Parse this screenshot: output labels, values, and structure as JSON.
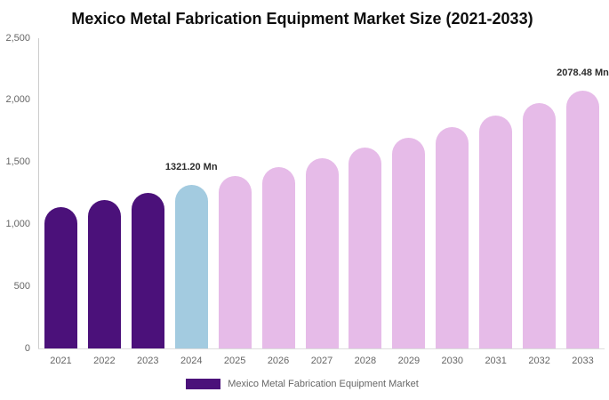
{
  "chart_data": {
    "type": "bar",
    "title": "Mexico Metal Fabrication Equipment Market Size (2021-2033)",
    "categories": [
      "2021",
      "2022",
      "2023",
      "2024",
      "2025",
      "2026",
      "2027",
      "2028",
      "2029",
      "2030",
      "2031",
      "2032",
      "2033"
    ],
    "values": [
      1136,
      1195,
      1256,
      1321.2,
      1389,
      1461,
      1536,
      1616,
      1699,
      1787,
      1879,
      1976,
      2078.48
    ],
    "unit": "Mn",
    "ylim": [
      0,
      2500
    ],
    "y_tick_values": [
      0,
      500,
      1000,
      1500,
      2000,
      2500
    ],
    "y_tick_labels": [
      "0",
      "500",
      "1,000",
      "1,500",
      "2,000",
      "2,500"
    ],
    "grid": false,
    "legend_position": "bottom",
    "colors": {
      "historical": "#4B117A",
      "base_year": "#A3CBE0",
      "forecast": "#E6BBE8"
    },
    "color_roles": [
      "historical",
      "historical",
      "historical",
      "base_year",
      "forecast",
      "forecast",
      "forecast",
      "forecast",
      "forecast",
      "forecast",
      "forecast",
      "forecast",
      "forecast"
    ],
    "data_labels": [
      {
        "year": "2024",
        "text": "1321.20 Mn"
      },
      {
        "year": "2033",
        "text": "2078.48 Mn"
      }
    ]
  },
  "legend": {
    "label": "Mexico Metal Fabrication Equipment Market",
    "swatch_color": "#4B117A"
  },
  "axis": {
    "text_color": "#666666",
    "line_color": "#cccccc"
  }
}
